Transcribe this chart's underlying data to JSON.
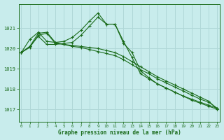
{
  "xlabel": "Graphe pression niveau de la mer (hPa)",
  "background_color": "#c8ecec",
  "grid_color": "#b0d8d8",
  "line_color": "#1a6b1a",
  "x_ticks": [
    0,
    1,
    2,
    3,
    4,
    5,
    6,
    7,
    8,
    9,
    10,
    11,
    12,
    13,
    14,
    15,
    16,
    17,
    18,
    19,
    20,
    21,
    22,
    23
  ],
  "y_ticks": [
    1017,
    1018,
    1019,
    1020,
    1021
  ],
  "ylim": [
    1016.4,
    1022.2
  ],
  "xlim": [
    -0.3,
    23.3
  ],
  "series": [
    [
      1019.8,
      1020.1,
      1020.75,
      1020.8,
      1020.3,
      1020.2,
      1020.15,
      1020.1,
      1020.05,
      1020.0,
      1019.9,
      1019.8,
      1019.6,
      1019.35,
      1019.1,
      1018.85,
      1018.6,
      1018.4,
      1018.2,
      1018.0,
      1017.8,
      1017.6,
      1017.4,
      1017.0
    ],
    [
      1019.8,
      1020.05,
      1020.65,
      1020.75,
      1020.25,
      1020.2,
      1020.1,
      1020.05,
      1019.95,
      1019.85,
      1019.75,
      1019.65,
      1019.45,
      1019.2,
      1018.95,
      1018.75,
      1018.5,
      1018.3,
      1018.1,
      1017.9,
      1017.7,
      1017.5,
      1017.35,
      1017.05
    ],
    [
      1019.8,
      1020.45,
      1020.8,
      1020.35,
      1020.3,
      1020.35,
      1020.55,
      1020.9,
      1021.35,
      1021.75,
      1021.2,
      1021.2,
      1020.35,
      1019.55,
      1018.75,
      1018.5,
      1018.25,
      1018.05,
      1017.85,
      1017.65,
      1017.5,
      1017.35,
      1017.2,
      1017.05
    ],
    [
      1019.8,
      1020.1,
      1020.6,
      1020.2,
      1020.2,
      1020.25,
      1020.3,
      1020.65,
      1021.1,
      1021.55,
      1021.2,
      1021.2,
      1020.25,
      1019.8,
      1018.9,
      1018.55,
      1018.25,
      1018.05,
      1017.85,
      1017.65,
      1017.45,
      1017.3,
      1017.15,
      1017.0
    ]
  ]
}
